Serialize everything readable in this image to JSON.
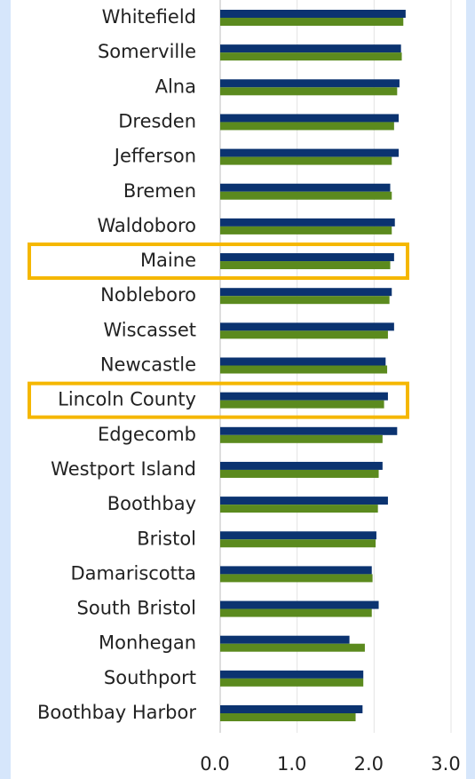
{
  "chart_data": {
    "type": "barh",
    "categories": [
      "Whitefield",
      "Somerville",
      "Alna",
      "Dresden",
      "Jefferson",
      "Bremen",
      "Waldoboro",
      "Maine",
      "Nobleboro",
      "Wiscasset",
      "Newcastle",
      "Lincoln County",
      "Edgecomb",
      "Westport Island",
      "Boothbay",
      "Bristol",
      "Damariscotta",
      "South Bristol",
      "Monhegan",
      "Southport",
      "Boothbay Harbor"
    ],
    "series": [
      {
        "color": "#0b3370",
        "values": [
          2.41,
          2.35,
          2.33,
          2.32,
          2.32,
          2.21,
          2.27,
          2.26,
          2.23,
          2.26,
          2.15,
          2.18,
          2.3,
          2.11,
          2.18,
          2.03,
          1.97,
          2.06,
          1.68,
          1.86,
          1.85
        ]
      },
      {
        "color": "#5b8a1e",
        "values": [
          2.38,
          2.36,
          2.3,
          2.26,
          2.23,
          2.23,
          2.23,
          2.21,
          2.2,
          2.18,
          2.17,
          2.13,
          2.11,
          2.06,
          2.05,
          2.02,
          1.98,
          1.97,
          1.88,
          1.86,
          1.76
        ]
      }
    ],
    "xlim": [
      0,
      3
    ],
    "xticks": [
      {
        "value": 0,
        "label": "0.0"
      },
      {
        "value": 1,
        "label": "1.0"
      },
      {
        "value": 2,
        "label": "2.0"
      },
      {
        "value": 3,
        "label": "3.0"
      }
    ],
    "grid": true,
    "highlighted": [
      7,
      11
    ],
    "highlight_color": "#f5b700"
  }
}
